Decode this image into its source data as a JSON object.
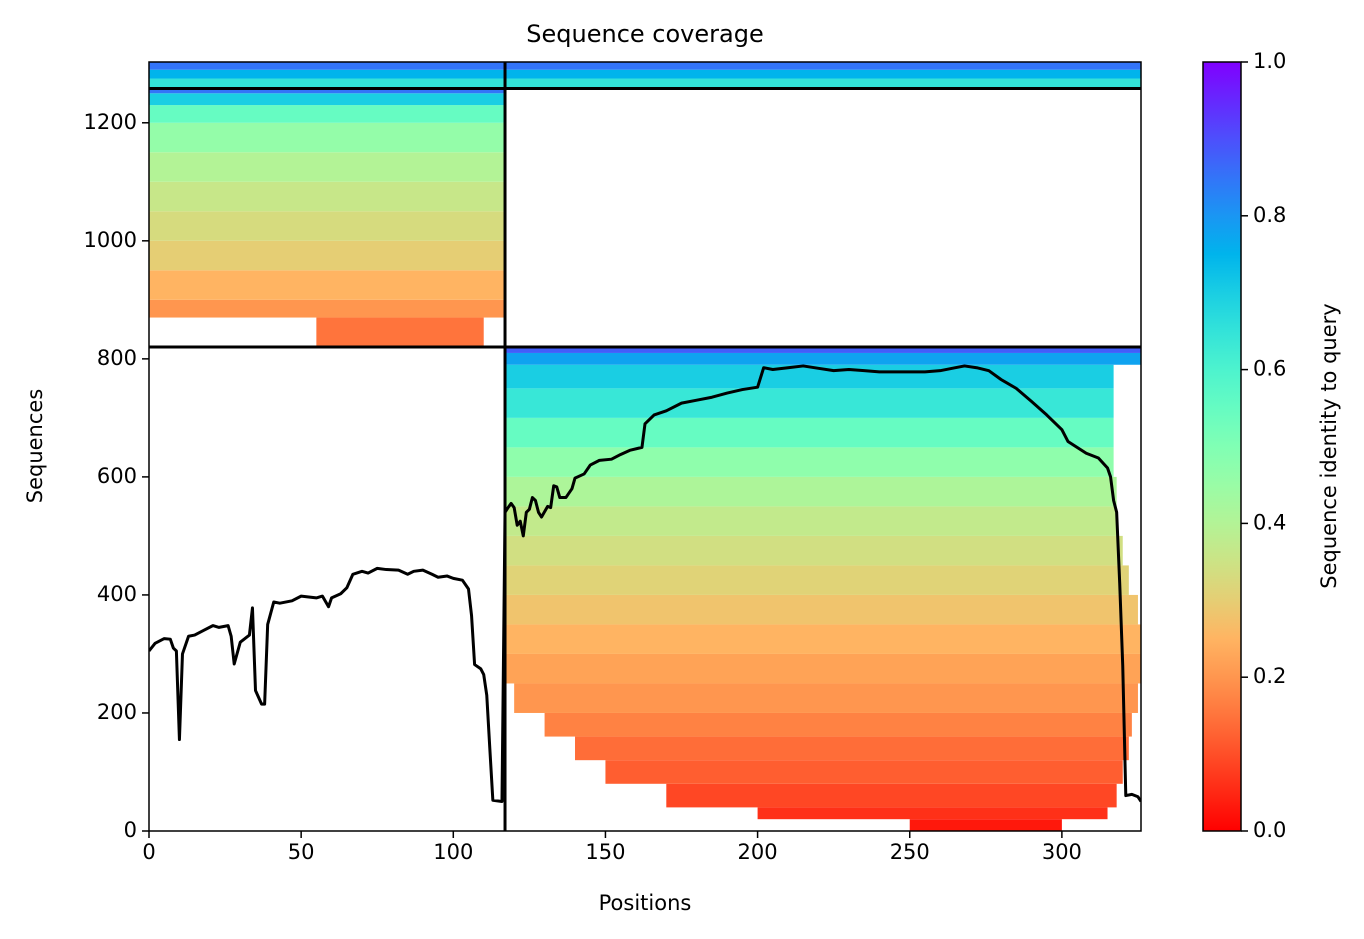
{
  "chart_data": {
    "type": "msa_coverage",
    "title": "Sequence coverage",
    "xlabel": "Positions",
    "ylabel": "Sequences",
    "colorbar_label": "Sequence identity to query",
    "colormap": "rainbow_r",
    "xlim": [
      0,
      326
    ],
    "ylim": [
      0,
      1303
    ],
    "xticks": [
      0,
      50,
      100,
      150,
      200,
      250,
      300
    ],
    "yticks": [
      0,
      200,
      400,
      600,
      800,
      1000,
      1200
    ],
    "clim": [
      0,
      1
    ],
    "cticks": [
      {
        "value": 0,
        "label": "0.0"
      },
      0.2,
      0.4,
      0.6,
      0.8,
      {
        "value": 1,
        "label": "1.0"
      }
    ],
    "separators_x": [
      117
    ],
    "separators_y": [
      820,
      1258
    ],
    "blocks": [
      {
        "x0": 250,
        "x1": 300,
        "y0": 0,
        "y1": 20,
        "identity": 0.03
      },
      {
        "x0": 200,
        "x1": 315,
        "y0": 20,
        "y1": 40,
        "identity": 0.06
      },
      {
        "x0": 170,
        "x1": 318,
        "y0": 40,
        "y1": 80,
        "identity": 0.09
      },
      {
        "x0": 150,
        "x1": 320,
        "y0": 80,
        "y1": 120,
        "identity": 0.12
      },
      {
        "x0": 140,
        "x1": 322,
        "y0": 120,
        "y1": 160,
        "identity": 0.14
      },
      {
        "x0": 130,
        "x1": 323,
        "y0": 160,
        "y1": 200,
        "identity": 0.17
      },
      {
        "x0": 120,
        "x1": 325,
        "y0": 200,
        "y1": 250,
        "identity": 0.2
      },
      {
        "x0": 117,
        "x1": 326,
        "y0": 250,
        "y1": 300,
        "identity": 0.22
      },
      {
        "x0": 117,
        "x1": 326,
        "y0": 300,
        "y1": 350,
        "identity": 0.25
      },
      {
        "x0": 117,
        "x1": 325,
        "y0": 350,
        "y1": 400,
        "identity": 0.28
      },
      {
        "x0": 117,
        "x1": 322,
        "y0": 400,
        "y1": 450,
        "identity": 0.31
      },
      {
        "x0": 117,
        "x1": 320,
        "y0": 450,
        "y1": 500,
        "identity": 0.34
      },
      {
        "x0": 117,
        "x1": 318,
        "y0": 500,
        "y1": 550,
        "identity": 0.37
      },
      {
        "x0": 117,
        "x1": 318,
        "y0": 550,
        "y1": 600,
        "identity": 0.41
      },
      {
        "x0": 117,
        "x1": 317,
        "y0": 600,
        "y1": 650,
        "identity": 0.47
      },
      {
        "x0": 117,
        "x1": 317,
        "y0": 650,
        "y1": 700,
        "identity": 0.55
      },
      {
        "x0": 117,
        "x1": 317,
        "y0": 700,
        "y1": 750,
        "identity": 0.64
      },
      {
        "x0": 117,
        "x1": 317,
        "y0": 750,
        "y1": 790,
        "identity": 0.7
      },
      {
        "x0": 117,
        "x1": 326,
        "y0": 790,
        "y1": 810,
        "identity": 0.78
      },
      {
        "x0": 117,
        "x1": 326,
        "y0": 810,
        "y1": 820,
        "identity": 0.88
      },
      {
        "x0": 55,
        "x1": 110,
        "y0": 820,
        "y1": 870,
        "identity": 0.15
      },
      {
        "x0": 0,
        "x1": 117,
        "y0": 870,
        "y1": 900,
        "identity": 0.2
      },
      {
        "x0": 0,
        "x1": 117,
        "y0": 900,
        "y1": 950,
        "identity": 0.25
      },
      {
        "x0": 0,
        "x1": 117,
        "y0": 950,
        "y1": 1000,
        "identity": 0.3
      },
      {
        "x0": 0,
        "x1": 117,
        "y0": 1000,
        "y1": 1050,
        "identity": 0.33
      },
      {
        "x0": 0,
        "x1": 117,
        "y0": 1050,
        "y1": 1100,
        "identity": 0.36
      },
      {
        "x0": 0,
        "x1": 117,
        "y0": 1100,
        "y1": 1150,
        "identity": 0.4
      },
      {
        "x0": 0,
        "x1": 117,
        "y0": 1150,
        "y1": 1200,
        "identity": 0.46
      },
      {
        "x0": 0,
        "x1": 117,
        "y0": 1200,
        "y1": 1230,
        "identity": 0.55
      },
      {
        "x0": 0,
        "x1": 117,
        "y0": 1230,
        "y1": 1250,
        "identity": 0.7
      },
      {
        "x0": 0,
        "x1": 117,
        "y0": 1250,
        "y1": 1258,
        "identity": 0.85
      },
      {
        "x0": 0,
        "x1": 326,
        "y0": 1258,
        "y1": 1275,
        "identity": 0.65
      },
      {
        "x0": 0,
        "x1": 326,
        "y0": 1275,
        "y1": 1290,
        "identity": 0.75
      },
      {
        "x0": 0,
        "x1": 326,
        "y0": 1290,
        "y1": 1303,
        "identity": 0.85
      }
    ],
    "coverage": {
      "x": [
        0,
        2,
        5,
        7,
        8,
        9,
        10,
        11,
        13,
        15,
        18,
        21,
        23,
        26,
        27,
        28,
        30,
        33,
        34,
        35,
        37,
        38,
        39,
        41,
        43,
        47,
        50,
        55,
        57,
        59,
        60,
        63,
        65,
        67,
        70,
        72,
        75,
        78,
        82,
        85,
        87,
        90,
        93,
        95,
        98,
        100,
        103,
        105,
        106,
        107,
        109,
        110,
        111,
        112,
        113,
        116,
        117,
        118,
        119,
        120,
        121,
        122,
        123,
        124,
        125,
        126,
        127,
        128,
        129,
        131,
        132,
        133,
        134,
        135,
        137,
        139,
        140,
        143,
        145,
        148,
        152,
        155,
        158,
        162,
        163,
        166,
        170,
        175,
        180,
        185,
        190,
        195,
        200,
        202,
        205,
        210,
        215,
        220,
        225,
        230,
        235,
        240,
        245,
        255,
        260,
        265,
        268,
        272,
        276,
        280,
        285,
        290,
        295,
        300,
        302,
        305,
        308,
        312,
        315,
        316,
        317,
        318,
        319,
        320,
        321,
        323,
        325,
        326
      ],
      "values": [
        305,
        318,
        326,
        325,
        310,
        305,
        155,
        300,
        330,
        332,
        340,
        348,
        345,
        348,
        330,
        283,
        320,
        332,
        378,
        238,
        215,
        215,
        350,
        388,
        386,
        390,
        398,
        395,
        398,
        380,
        395,
        402,
        412,
        435,
        440,
        437,
        445,
        443,
        442,
        435,
        440,
        442,
        435,
        430,
        432,
        428,
        425,
        410,
        365,
        282,
        275,
        265,
        230,
        140,
        52,
        50,
        540,
        548,
        555,
        548,
        518,
        525,
        500,
        540,
        545,
        565,
        560,
        540,
        532,
        550,
        548,
        585,
        583,
        565,
        565,
        580,
        598,
        605,
        620,
        628,
        630,
        638,
        645,
        650,
        690,
        705,
        712,
        725,
        730,
        735,
        742,
        748,
        752,
        785,
        782,
        785,
        788,
        784,
        780,
        782,
        780,
        778,
        778,
        778,
        780,
        785,
        788,
        785,
        780,
        765,
        750,
        728,
        705,
        680,
        660,
        650,
        640,
        632,
        615,
        600,
        560,
        540,
        420,
        280,
        60,
        62,
        58,
        50
      ],
      "color": "#000000"
    }
  }
}
